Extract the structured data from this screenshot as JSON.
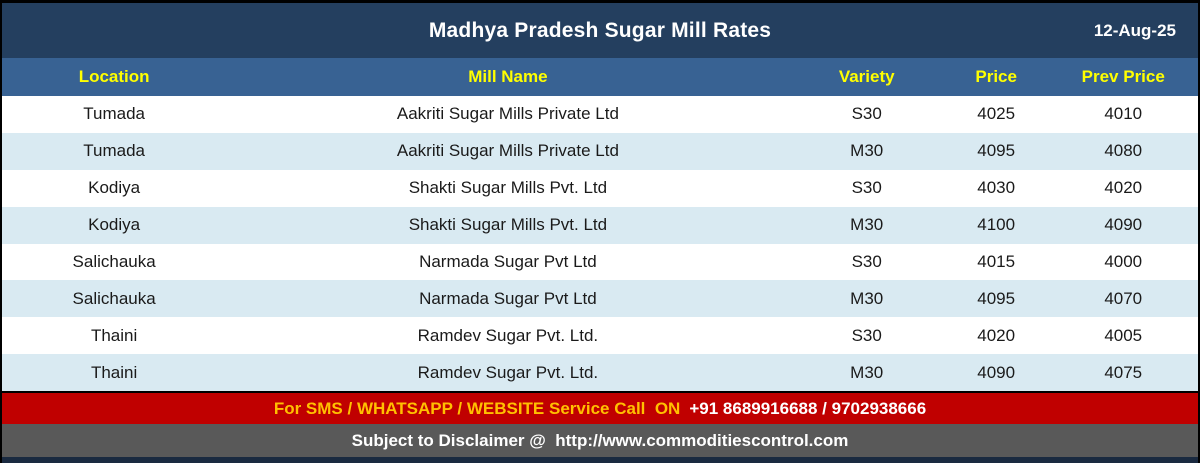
{
  "title_bar": {
    "title": "Madhya Pradesh Sugar Mill Rates",
    "date": "12-Aug-25"
  },
  "table": {
    "columns": [
      "Location",
      "Mill Name",
      "Variety",
      "Price",
      "Prev Price"
    ],
    "rows": [
      [
        "Tumada",
        "Aakriti Sugar Mills Private Ltd",
        "S30",
        "4025",
        "4010"
      ],
      [
        "Tumada",
        "Aakriti Sugar Mills Private Ltd",
        "M30",
        "4095",
        "4080"
      ],
      [
        "Kodiya",
        "Shakti Sugar Mills Pvt. Ltd",
        "S30",
        "4030",
        "4020"
      ],
      [
        "Kodiya",
        "Shakti Sugar Mills Pvt. Ltd",
        "M30",
        "4100",
        "4090"
      ],
      [
        "Salichauka",
        "Narmada Sugar Pvt Ltd",
        "S30",
        "4015",
        "4000"
      ],
      [
        "Salichauka",
        "Narmada Sugar Pvt Ltd",
        "M30",
        "4095",
        "4070"
      ],
      [
        "Thaini",
        "Ramdev Sugar Pvt. Ltd.",
        "S30",
        "4020",
        "4005"
      ],
      [
        "Thaini",
        "Ramdev Sugar Pvt. Ltd.",
        "M30",
        "4090",
        "4075"
      ]
    ]
  },
  "footer": {
    "service_label": "For SMS / WHATSAPP / WEBSITE Service Call  ON",
    "service_numbers": "+91 8689916688 / 9702938666",
    "disclaimer": "Subject to Disclaimer @  http://www.commoditiescontrol.com"
  },
  "colors": {
    "title_bar_bg": "#243F5F",
    "header_row_bg": "#386293",
    "header_text": "#FFFF00",
    "alt_row_bg": "#D9EAF2",
    "service_bar_bg": "#C00000",
    "service_label_text": "#FFC000",
    "disclaimer_bar_bg": "#595959",
    "bottom_strip": "#1A2A40"
  }
}
